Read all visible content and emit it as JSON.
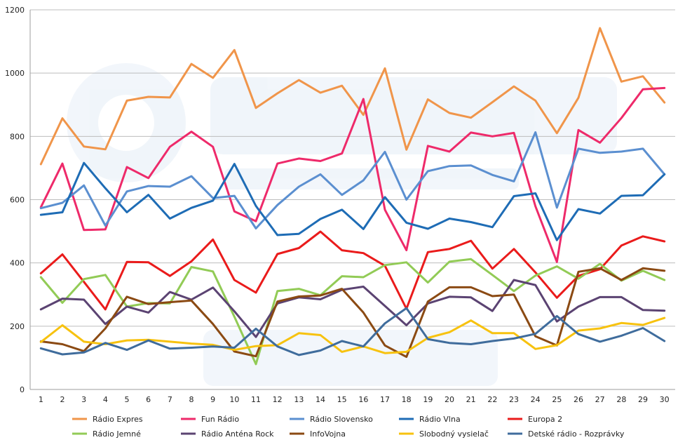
{
  "chart_data": {
    "type": "line",
    "title": "",
    "xlabel": "",
    "ylabel": "",
    "x": [
      1,
      2,
      3,
      4,
      5,
      6,
      7,
      8,
      9,
      10,
      11,
      12,
      13,
      14,
      15,
      16,
      17,
      18,
      19,
      20,
      21,
      22,
      23,
      24,
      25,
      26,
      27,
      28,
      29,
      30
    ],
    "ylim": [
      0,
      1200
    ],
    "yticks": [
      0,
      200,
      400,
      600,
      800,
      1000,
      1200
    ],
    "grid": "horizontal",
    "legend_position": "bottom",
    "series": [
      {
        "name": "Rádio Expres",
        "color": "#f0954a",
        "values": [
          712,
          857,
          768,
          759,
          913,
          925,
          923,
          1029,
          985,
          1073,
          890,
          936,
          978,
          938,
          960,
          868,
          1015,
          758,
          917,
          874,
          859,
          908,
          958,
          913,
          810,
          922,
          1142,
          973,
          990,
          907
        ]
      },
      {
        "name": "Fun Rádio",
        "color": "#ee2a6a",
        "values": [
          576,
          714,
          504,
          506,
          703,
          668,
          767,
          815,
          767,
          563,
          532,
          714,
          730,
          722,
          746,
          918,
          568,
          440,
          770,
          752,
          812,
          800,
          811,
          579,
          403,
          820,
          780,
          858,
          949,
          953
        ]
      },
      {
        "name": "Rádio Slovensko",
        "color": "#5b8fd0",
        "values": [
          573,
          590,
          645,
          518,
          626,
          643,
          641,
          674,
          605,
          612,
          509,
          583,
          641,
          680,
          615,
          661,
          751,
          600,
          690,
          706,
          708,
          678,
          658,
          813,
          575,
          761,
          748,
          752,
          761,
          680
        ]
      },
      {
        "name": "Rádio Vlna",
        "color": "#1e6cb5",
        "values": [
          552,
          560,
          716,
          636,
          560,
          615,
          540,
          574,
          597,
          713,
          580,
          488,
          492,
          539,
          568,
          507,
          608,
          527,
          508,
          540,
          529,
          513,
          611,
          620,
          472,
          570,
          556,
          612,
          614,
          680
        ]
      },
      {
        "name": "Europa 2",
        "color": "#ea1b1b",
        "values": [
          367,
          427,
          340,
          253,
          403,
          402,
          359,
          405,
          474,
          346,
          306,
          428,
          447,
          499,
          440,
          431,
          391,
          255,
          434,
          444,
          470,
          382,
          444,
          370,
          290,
          359,
          380,
          455,
          484,
          468
        ]
      },
      {
        "name": "Rádio Jemné",
        "color": "#92cb56",
        "values": [
          355,
          274,
          349,
          362,
          262,
          273,
          272,
          387,
          373,
          230,
          80,
          311,
          318,
          298,
          358,
          355,
          393,
          402,
          338,
          404,
          412,
          362,
          311,
          360,
          389,
          350,
          397,
          344,
          375,
          346
        ]
      },
      {
        "name": "Rádio Anténa Rock",
        "color": "#5b4372",
        "values": [
          253,
          287,
          284,
          207,
          262,
          243,
          308,
          284,
          322,
          247,
          166,
          272,
          291,
          285,
          315,
          325,
          264,
          203,
          272,
          293,
          291,
          248,
          346,
          330,
          215,
          262,
          292,
          292,
          251,
          249
        ]
      },
      {
        "name": "InfoVojna",
        "color": "#8b4a13",
        "values": [
          152,
          143,
          121,
          193,
          293,
          270,
          276,
          281,
          207,
          120,
          105,
          278,
          294,
          297,
          318,
          243,
          139,
          103,
          278,
          323,
          323,
          295,
          300,
          168,
          139,
          372,
          383,
          346,
          383,
          375
        ]
      },
      {
        "name": "Slobodný vysielač",
        "color": "#f7c20f",
        "values": [
          150,
          203,
          151,
          143,
          155,
          157,
          151,
          145,
          141,
          125,
          137,
          140,
          178,
          172,
          119,
          136,
          115,
          119,
          163,
          181,
          218,
          178,
          178,
          128,
          140,
          186,
          193,
          210,
          204,
          226
        ]
      },
      {
        "name": "Detské rádio - Rozprávky",
        "color": "#3f6c9c",
        "values": [
          130,
          111,
          117,
          147,
          125,
          155,
          129,
          132,
          136,
          132,
          192,
          136,
          109,
          123,
          153,
          136,
          209,
          257,
          159,
          147,
          143,
          153,
          161,
          176,
          232,
          175,
          151,
          170,
          194,
          153
        ]
      }
    ]
  }
}
